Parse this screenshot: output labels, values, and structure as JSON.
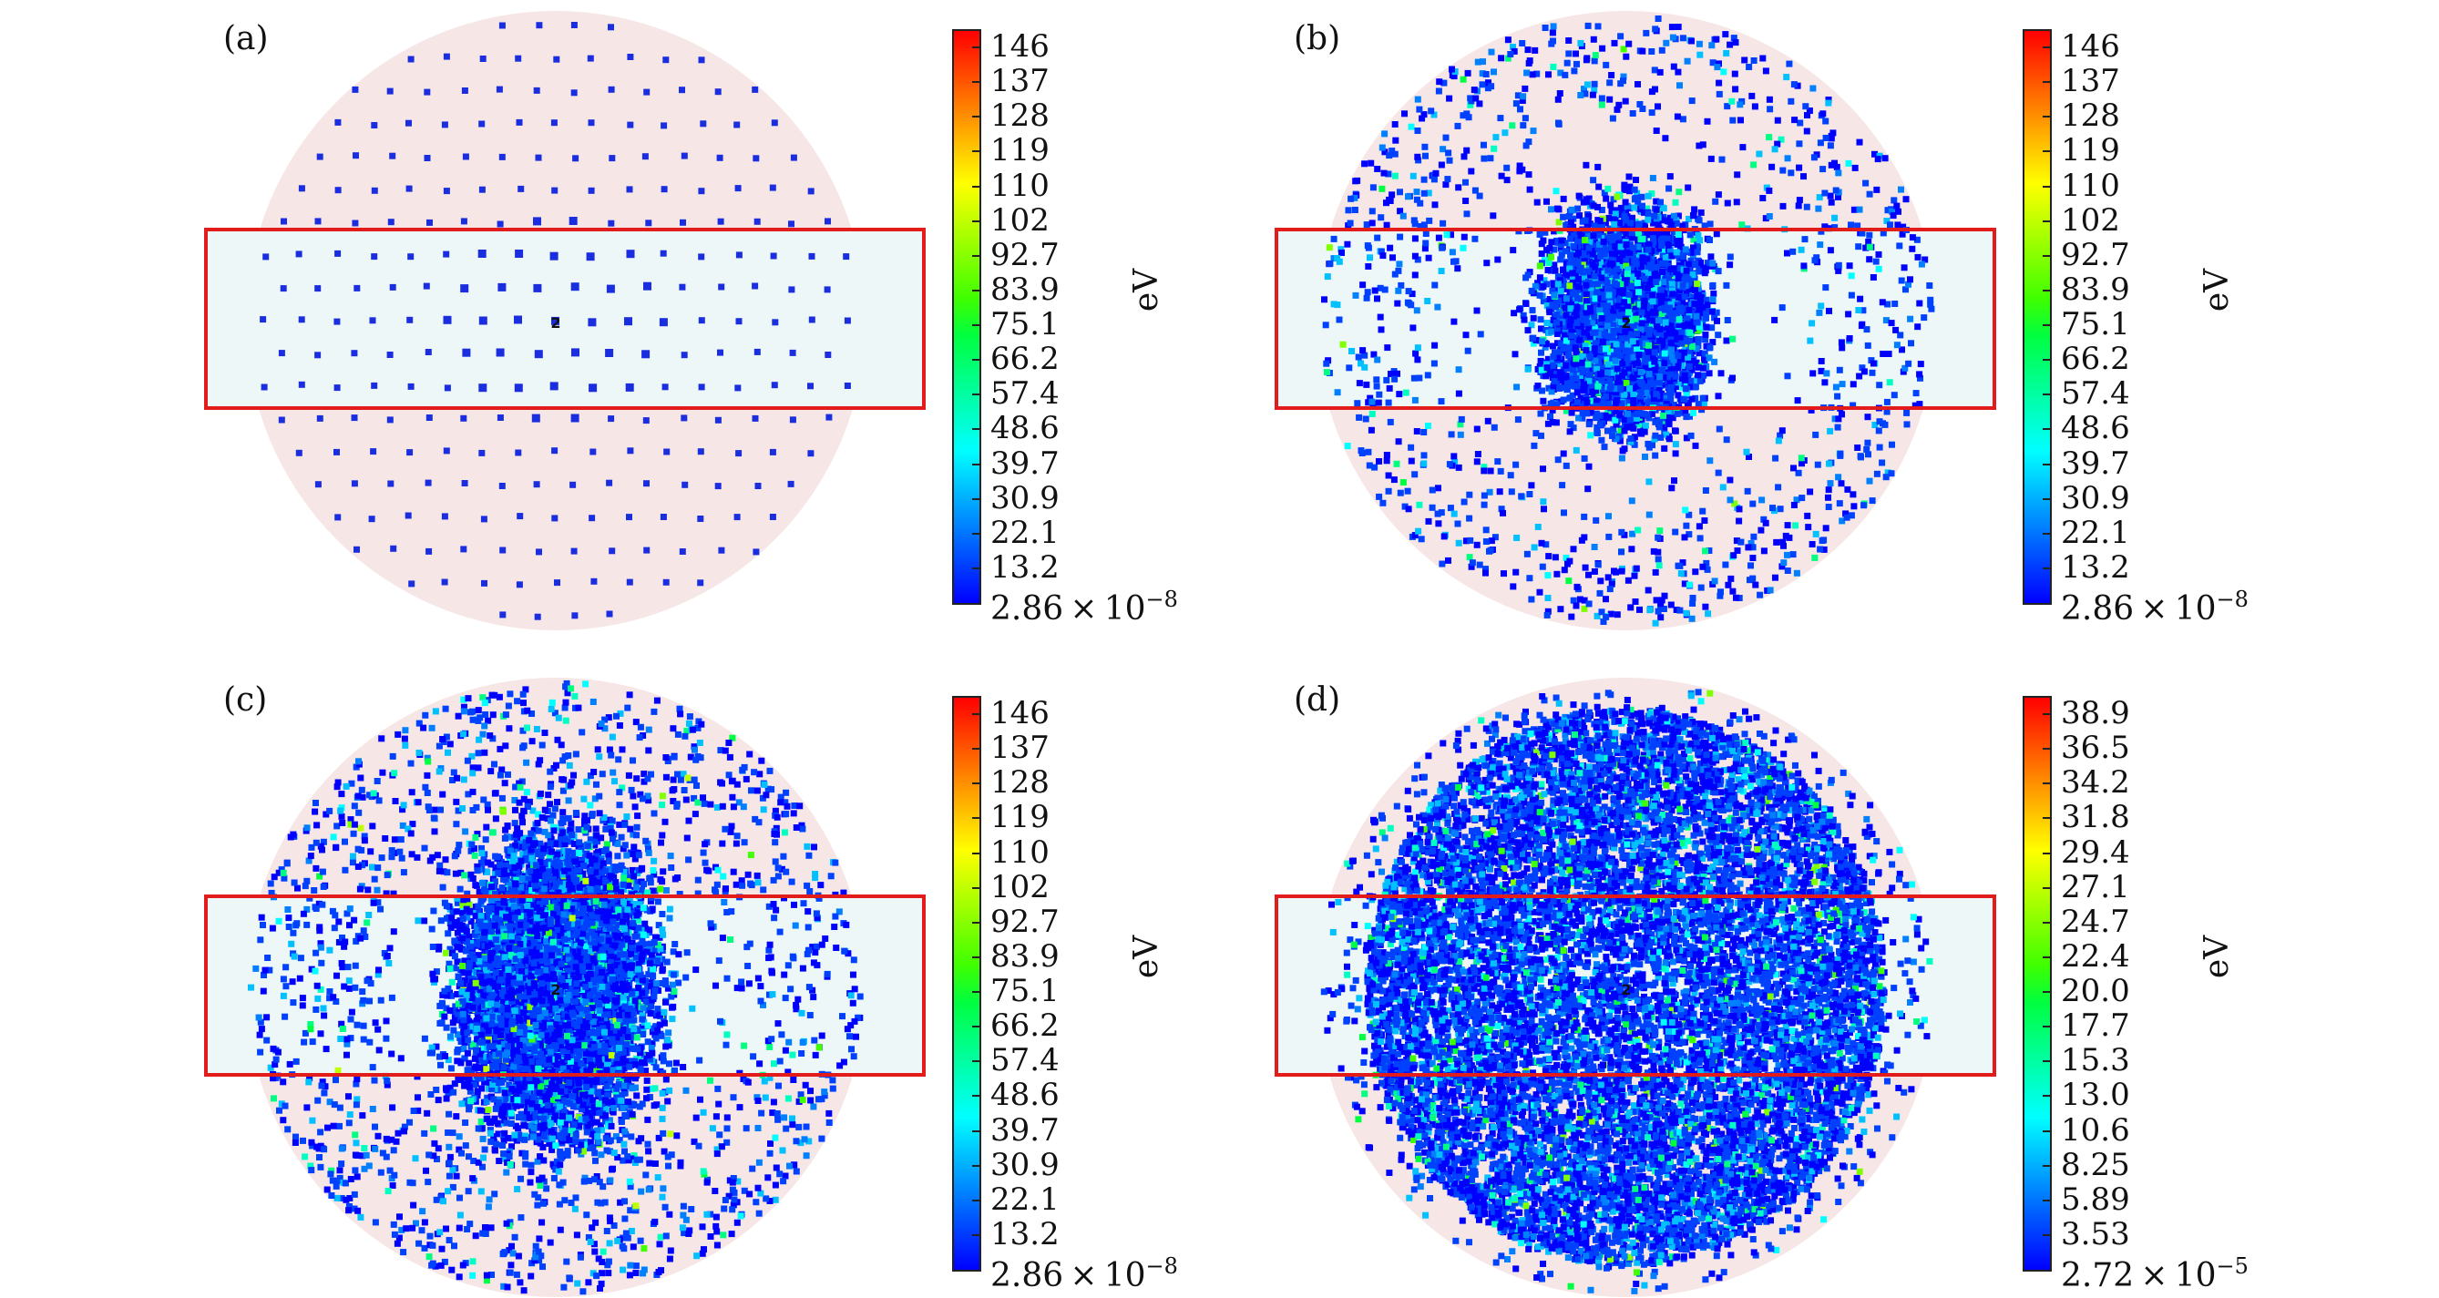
{
  "figure": {
    "panels": [
      {
        "label": "(a)",
        "unit": "eV",
        "colorbar_ticks": [
          "146",
          "137",
          "128",
          "119",
          "110",
          "102",
          "92.7",
          "83.9",
          "75.1",
          "66.2",
          "57.4",
          "48.6",
          "39.7",
          "30.9",
          "22.1",
          "13.2"
        ],
        "colorbar_min_base": "2.86 × 10",
        "colorbar_min_exp": "−8",
        "pattern": "lattice",
        "center_marker": "2"
      },
      {
        "label": "(b)",
        "unit": "eV",
        "colorbar_ticks": [
          "146",
          "137",
          "128",
          "119",
          "110",
          "102",
          "92.7",
          "83.9",
          "75.1",
          "66.2",
          "57.4",
          "48.6",
          "39.7",
          "30.9",
          "22.1",
          "13.2"
        ],
        "colorbar_min_base": "2.86 × 10",
        "colorbar_min_exp": "−8",
        "pattern": "cascade-early",
        "center_marker": "2"
      },
      {
        "label": "(c)",
        "unit": "eV",
        "colorbar_ticks": [
          "146",
          "137",
          "128",
          "119",
          "110",
          "102",
          "92.7",
          "83.9",
          "75.1",
          "66.2",
          "57.4",
          "48.6",
          "39.7",
          "30.9",
          "22.1",
          "13.2"
        ],
        "colorbar_min_base": "2.86 × 10",
        "colorbar_min_exp": "−8",
        "pattern": "cascade-mid",
        "center_marker": "2"
      },
      {
        "label": "(d)",
        "unit": "eV",
        "colorbar_ticks": [
          "38.9",
          "36.5",
          "34.2",
          "31.8",
          "29.4",
          "27.1",
          "24.7",
          "22.4",
          "20.0",
          "17.7",
          "15.3",
          "13.0",
          "10.6",
          "8.25",
          "5.89",
          "3.53"
        ],
        "colorbar_min_base": "2.72 × 10",
        "colorbar_min_exp": "−5",
        "pattern": "cascade-late",
        "center_marker": "2"
      }
    ],
    "colors": {
      "disk_fill": "#f6e6e6",
      "box_fill": "#eef7f8",
      "box_stroke": "#e21b1b",
      "atom_base": "#1f2ee6"
    },
    "colormap": [
      "#0000ff",
      "#0040ff",
      "#0080ff",
      "#00c0ff",
      "#00ffff",
      "#00ffc0",
      "#00ff80",
      "#00ff40",
      "#40ff00",
      "#80ff00",
      "#c0ff00",
      "#ffff00",
      "#ffc000",
      "#ff8000",
      "#ff4000",
      "#ff0000"
    ]
  }
}
